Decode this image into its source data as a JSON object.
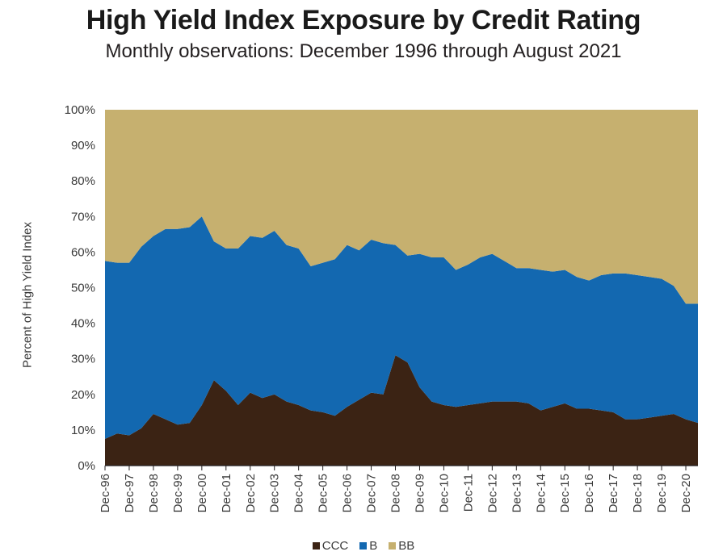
{
  "title": "High Yield Index Exposure by Credit Rating",
  "subtitle": "Monthly observations: December 1996 through August 2021",
  "colors": {
    "CCC": "#3b2314",
    "B": "#1368b0",
    "BB": "#c6b06f"
  },
  "chart_data": {
    "type": "area",
    "stacked": true,
    "title": "High Yield Index Exposure by Credit Rating",
    "subtitle": "Monthly observations: December 1996 through August 2021",
    "xlabel": "",
    "ylabel": "Percent of High Yield Index",
    "ylim": [
      0,
      100
    ],
    "yticks": [
      "0%",
      "10%",
      "20%",
      "30%",
      "40%",
      "50%",
      "60%",
      "70%",
      "80%",
      "90%",
      "100%"
    ],
    "xticks": [
      "Dec-96",
      "Dec-97",
      "Dec-98",
      "Dec-99",
      "Dec-00",
      "Dec-01",
      "Dec-02",
      "Dec-03",
      "Dec-04",
      "Dec-05",
      "Dec-06",
      "Dec-07",
      "Dec-08",
      "Dec-09",
      "Dec-10",
      "Dec-11",
      "Dec-12",
      "Dec-13",
      "Dec-14",
      "Dec-15",
      "Dec-16",
      "Dec-17",
      "Dec-18",
      "Dec-19",
      "Dec-20"
    ],
    "legend_position": "bottom",
    "x": [
      "Dec-96",
      "Jun-97",
      "Dec-97",
      "Jun-98",
      "Dec-98",
      "Jun-99",
      "Dec-99",
      "Jun-00",
      "Dec-00",
      "Jun-01",
      "Dec-01",
      "Jun-02",
      "Dec-02",
      "Jun-03",
      "Dec-03",
      "Jun-04",
      "Dec-04",
      "Jun-05",
      "Dec-05",
      "Jun-06",
      "Dec-06",
      "Jun-07",
      "Dec-07",
      "Jun-08",
      "Dec-08",
      "Jun-09",
      "Dec-09",
      "Jun-10",
      "Dec-10",
      "Jun-11",
      "Dec-11",
      "Jun-12",
      "Dec-12",
      "Jun-13",
      "Dec-13",
      "Jun-14",
      "Dec-14",
      "Jun-15",
      "Dec-15",
      "Jun-16",
      "Dec-16",
      "Jun-17",
      "Dec-17",
      "Jun-18",
      "Dec-18",
      "Jun-19",
      "Dec-19",
      "Jun-20",
      "Dec-20",
      "Aug-21"
    ],
    "series": [
      {
        "name": "CCC",
        "values": [
          7.5,
          9,
          8.5,
          10.5,
          14.5,
          13,
          11.5,
          12,
          17,
          24,
          21,
          17,
          20.5,
          19,
          20,
          18,
          17,
          15.5,
          15,
          14,
          16.5,
          18.5,
          20.5,
          20,
          31,
          29,
          22,
          18,
          17,
          16.5,
          17,
          17.5,
          18,
          18,
          18,
          17.5,
          15.5,
          16.5,
          17.5,
          16,
          16,
          15.5,
          15,
          13,
          13,
          13.5,
          14,
          14.5,
          13,
          12
        ]
      },
      {
        "name": "B",
        "values": [
          50,
          48,
          48.5,
          51,
          50,
          53.5,
          55,
          55,
          53,
          39,
          40,
          44,
          44,
          45,
          46,
          44,
          44,
          40.5,
          42,
          44,
          45.5,
          42,
          43,
          42.5,
          31,
          30,
          37.5,
          40.5,
          41.5,
          38.5,
          39.5,
          41,
          41.5,
          39.5,
          37.5,
          38,
          39.5,
          38,
          37.5,
          37,
          36,
          38,
          39,
          41,
          40.5,
          39.5,
          38.5,
          36,
          32.5,
          33.5
        ]
      },
      {
        "name": "BB",
        "values": [
          42.5,
          43,
          43,
          38.5,
          35.5,
          33.5,
          33.5,
          33,
          30,
          37,
          39,
          39,
          35.5,
          36,
          34,
          38,
          39,
          44,
          43,
          42,
          38,
          39.5,
          36.5,
          37.5,
          38,
          41,
          40.5,
          41.5,
          41.5,
          45,
          43.5,
          41.5,
          40.5,
          42.5,
          44.5,
          44.5,
          45,
          45.5,
          45,
          47,
          48,
          46.5,
          46,
          46,
          46.5,
          47,
          47.5,
          49.5,
          54.5,
          54.5
        ]
      }
    ]
  }
}
